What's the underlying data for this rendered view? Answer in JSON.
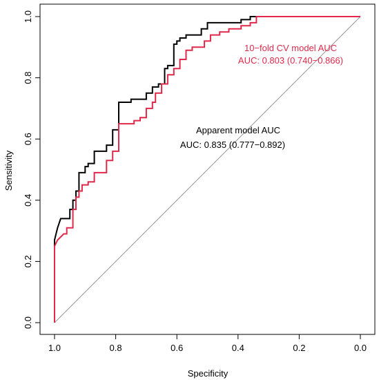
{
  "chart_data": {
    "type": "line",
    "title": "",
    "xlabel": "Specificity",
    "ylabel": "Sensitivity",
    "xlim": [
      1.0,
      0.0
    ],
    "ylim": [
      0.0,
      1.0
    ],
    "x_reversed": true,
    "x_ticks": [
      "1.0",
      "0.8",
      "0.6",
      "0.4",
      "0.2",
      "0.0"
    ],
    "y_ticks": [
      "0.0",
      "0.2",
      "0.4",
      "0.6",
      "0.8",
      "1.0"
    ],
    "grid": false,
    "reference_line": {
      "from": [
        1.0,
        0.0
      ],
      "to": [
        0.0,
        1.0
      ],
      "color": "#999999"
    },
    "annotations": [
      {
        "line1": "Apparent model AUC",
        "line2": "AUC: 0.835 (0.777−0.892)",
        "color": "#000000"
      },
      {
        "line1": "10−fold CV model AUC",
        "line2": "AUC: 0.803 (0.740−0.866)",
        "color": "#e0294a"
      }
    ],
    "series": [
      {
        "color": "#000000",
        "points": [
          [
            1.0,
            0.0
          ],
          [
            1.0,
            0.27
          ],
          [
            0.99,
            0.31
          ],
          [
            0.98,
            0.34
          ],
          [
            0.95,
            0.34
          ],
          [
            0.95,
            0.37
          ],
          [
            0.94,
            0.37
          ],
          [
            0.94,
            0.4
          ],
          [
            0.93,
            0.4
          ],
          [
            0.93,
            0.43
          ],
          [
            0.92,
            0.43
          ],
          [
            0.92,
            0.49
          ],
          [
            0.9,
            0.49
          ],
          [
            0.9,
            0.51
          ],
          [
            0.89,
            0.51
          ],
          [
            0.89,
            0.52
          ],
          [
            0.87,
            0.52
          ],
          [
            0.87,
            0.56
          ],
          [
            0.83,
            0.56
          ],
          [
            0.83,
            0.58
          ],
          [
            0.81,
            0.58
          ],
          [
            0.81,
            0.63
          ],
          [
            0.79,
            0.63
          ],
          [
            0.79,
            0.72
          ],
          [
            0.75,
            0.72
          ],
          [
            0.75,
            0.73
          ],
          [
            0.7,
            0.73
          ],
          [
            0.7,
            0.75
          ],
          [
            0.68,
            0.75
          ],
          [
            0.68,
            0.77
          ],
          [
            0.66,
            0.77
          ],
          [
            0.66,
            0.78
          ],
          [
            0.64,
            0.78
          ],
          [
            0.64,
            0.83
          ],
          [
            0.63,
            0.83
          ],
          [
            0.63,
            0.84
          ],
          [
            0.61,
            0.84
          ],
          [
            0.61,
            0.91
          ],
          [
            0.6,
            0.91
          ],
          [
            0.6,
            0.92
          ],
          [
            0.59,
            0.92
          ],
          [
            0.59,
            0.93
          ],
          [
            0.57,
            0.93
          ],
          [
            0.57,
            0.94
          ],
          [
            0.52,
            0.94
          ],
          [
            0.52,
            0.96
          ],
          [
            0.5,
            0.96
          ],
          [
            0.5,
            0.98
          ],
          [
            0.39,
            0.98
          ],
          [
            0.39,
            0.99
          ],
          [
            0.36,
            0.99
          ],
          [
            0.36,
            1.0
          ],
          [
            0.0,
            1.0
          ]
        ]
      },
      {
        "color": "#e0294a",
        "points": [
          [
            1.0,
            0.0
          ],
          [
            1.0,
            0.25
          ],
          [
            0.99,
            0.27
          ],
          [
            0.98,
            0.28
          ],
          [
            0.97,
            0.29
          ],
          [
            0.96,
            0.29
          ],
          [
            0.96,
            0.31
          ],
          [
            0.94,
            0.31
          ],
          [
            0.94,
            0.37
          ],
          [
            0.93,
            0.37
          ],
          [
            0.93,
            0.41
          ],
          [
            0.92,
            0.41
          ],
          [
            0.92,
            0.43
          ],
          [
            0.91,
            0.43
          ],
          [
            0.91,
            0.45
          ],
          [
            0.89,
            0.45
          ],
          [
            0.89,
            0.46
          ],
          [
            0.87,
            0.46
          ],
          [
            0.87,
            0.49
          ],
          [
            0.83,
            0.49
          ],
          [
            0.83,
            0.53
          ],
          [
            0.81,
            0.53
          ],
          [
            0.81,
            0.56
          ],
          [
            0.79,
            0.56
          ],
          [
            0.79,
            0.65
          ],
          [
            0.74,
            0.65
          ],
          [
            0.74,
            0.66
          ],
          [
            0.72,
            0.66
          ],
          [
            0.72,
            0.67
          ],
          [
            0.7,
            0.67
          ],
          [
            0.7,
            0.7
          ],
          [
            0.68,
            0.7
          ],
          [
            0.68,
            0.72
          ],
          [
            0.67,
            0.72
          ],
          [
            0.67,
            0.75
          ],
          [
            0.65,
            0.75
          ],
          [
            0.65,
            0.78
          ],
          [
            0.63,
            0.78
          ],
          [
            0.63,
            0.81
          ],
          [
            0.61,
            0.81
          ],
          [
            0.61,
            0.83
          ],
          [
            0.59,
            0.83
          ],
          [
            0.59,
            0.86
          ],
          [
            0.57,
            0.86
          ],
          [
            0.57,
            0.89
          ],
          [
            0.55,
            0.89
          ],
          [
            0.55,
            0.9
          ],
          [
            0.51,
            0.9
          ],
          [
            0.51,
            0.92
          ],
          [
            0.49,
            0.92
          ],
          [
            0.49,
            0.94
          ],
          [
            0.46,
            0.94
          ],
          [
            0.46,
            0.95
          ],
          [
            0.43,
            0.95
          ],
          [
            0.43,
            0.96
          ],
          [
            0.39,
            0.96
          ],
          [
            0.39,
            0.97
          ],
          [
            0.36,
            0.97
          ],
          [
            0.36,
            0.98
          ],
          [
            0.34,
            0.98
          ],
          [
            0.34,
            1.0
          ],
          [
            0.0,
            1.0
          ]
        ]
      }
    ]
  }
}
